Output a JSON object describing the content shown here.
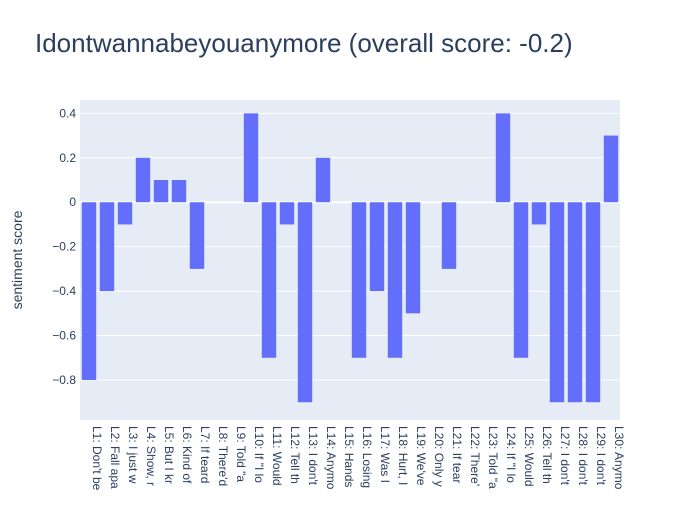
{
  "chart_data": {
    "type": "bar",
    "title": "Idontwannabeyouanymore (overall score: -0.2)",
    "xlabel": "",
    "ylabel": "sentiment score",
    "ylim": [
      -0.98,
      0.46
    ],
    "yticks": [
      0.4,
      0.2,
      0,
      -0.2,
      -0.4,
      -0.6,
      -0.8
    ],
    "ytick_labels": [
      "0.4",
      "0.2",
      "0",
      "−0.2",
      "−0.4",
      "−0.6",
      "−0.8"
    ],
    "grid": true,
    "legend": "none",
    "colors": {
      "bar": "#636efa",
      "plot_bg": "#e5ecf6",
      "grid": "#ffffff",
      "text": "#2a3f5f"
    },
    "categories": [
      "L1: Don't be",
      "L2: Fall apa",
      "L3: I just w",
      "L4: Show, r",
      "L5: But I kr",
      "L6: Kind of",
      "L7: If teard",
      "L8: There'd",
      "L9: Told \"a",
      "L10: If \"I lo",
      "L11: Would",
      "L12: Tell th",
      "L13: I don't",
      "L14: Anymo",
      "L15: Hands",
      "L16: Losing",
      "L17: Was I",
      "L18: Hurt, I",
      "L19: We've",
      "L20: Only y",
      "L21: If tear",
      "L22: There'",
      "L23: Told \"a",
      "L24: If \"I lo",
      "L25: Would",
      "L26: Tell th",
      "L27: I don't",
      "L28: I don't",
      "L29: I don't",
      "L30: Anymo"
    ],
    "values": [
      -0.8,
      -0.4,
      -0.1,
      0.2,
      0.1,
      0.1,
      -0.3,
      0,
      0,
      0.4,
      -0.7,
      -0.1,
      -0.9,
      0.2,
      0,
      -0.7,
      -0.4,
      -0.7,
      -0.5,
      0,
      -0.3,
      0,
      0,
      0.4,
      -0.7,
      -0.1,
      -0.9,
      -0.9,
      -0.9,
      0.3
    ]
  }
}
